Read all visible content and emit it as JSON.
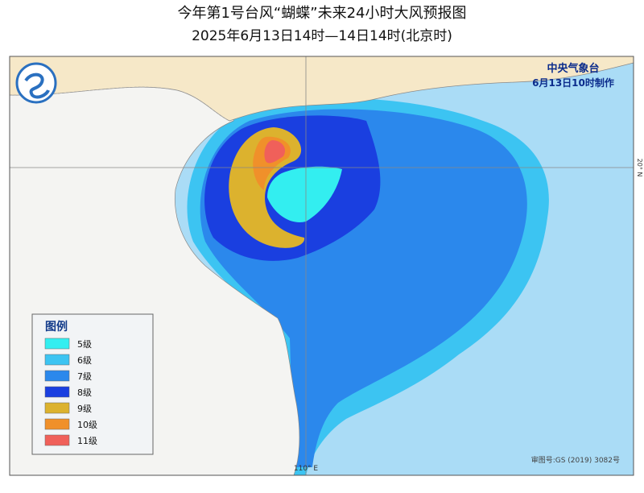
{
  "header": {
    "title": "今年第1号台风“蝴蝶”未来24小时大风预报图",
    "subtitle": "2025年6月13日14时—14日14时(北京时)"
  },
  "agency": {
    "name": "中央气象台",
    "issued": "6月13日10时制作"
  },
  "legend": {
    "title": "图例",
    "items": [
      {
        "label": "5级",
        "color": "#33eef0"
      },
      {
        "label": "6级",
        "color": "#3cc4f2"
      },
      {
        "label": "7级",
        "color": "#2b88ec"
      },
      {
        "label": "8级",
        "color": "#1a3fe0"
      },
      {
        "label": "9级",
        "color": "#dcb22e"
      },
      {
        "label": "10级",
        "color": "#f0902a"
      },
      {
        "label": "11级",
        "color": "#f0605a"
      }
    ]
  },
  "axes": {
    "lat_label": "20° N",
    "lon_label": "110° E"
  },
  "footer": {
    "review_number": "审图号:GS (2019) 3082号"
  }
}
